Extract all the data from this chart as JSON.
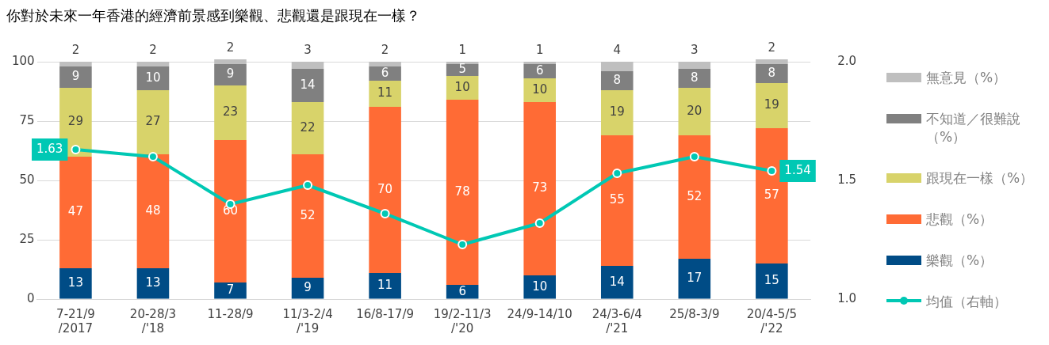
{
  "chart_data": {
    "type": "bar",
    "title": "你對於未來一年香港的經濟前景感到樂觀、悲觀還是跟現在一樣？",
    "categories": [
      "7-21/9\n/2017",
      "20-28/3\n/'18",
      "11-28/9",
      "11/3-2/4\n/'19",
      "16/8-17/9",
      "19/2-11/3\n/'20",
      "24/9-14/10",
      "24/3-6/4\n/'21",
      "25/8-3/9",
      "20/4-5/5\n/'22"
    ],
    "stacked": true,
    "data_labels": true,
    "grid": "y",
    "legend": "right",
    "ylim": [
      0,
      101
    ],
    "yticks": [
      0,
      25,
      50,
      75,
      100
    ],
    "y2lim": [
      1,
      2.01
    ],
    "y2ticks": [
      {
        "value": 1,
        "label": "1.0"
      },
      {
        "value": 1.5,
        "label": "1.5"
      },
      {
        "value": 2,
        "label": "2.0"
      }
    ],
    "series": [
      {
        "name": "樂觀（%）",
        "color": "#004c86",
        "values": [
          13,
          13,
          7,
          9,
          11,
          6,
          10,
          14,
          17,
          15
        ]
      },
      {
        "name": "悲觀（%）",
        "color": "#ff6b35",
        "values": [
          47,
          48,
          60,
          52,
          70,
          78,
          73,
          55,
          52,
          57
        ]
      },
      {
        "name": "跟現在一樣（%）",
        "color": "#d8d36a",
        "values": [
          29,
          27,
          23,
          22,
          11,
          10,
          10,
          19,
          20,
          19
        ]
      },
      {
        "name": "不知道／很難說（%）",
        "color": "#808080",
        "values": [
          9,
          10,
          9,
          14,
          6,
          5,
          6,
          8,
          8,
          8
        ]
      },
      {
        "name": "無意見（%）",
        "color": "#bfbfbf",
        "values": [
          2,
          2,
          2,
          3,
          2,
          1,
          1,
          4,
          3,
          2
        ]
      },
      {
        "name": "均值（右軸）",
        "type": "line",
        "axis": "y2",
        "color": "#00c8b4",
        "marker": "circle",
        "line_style": "solid",
        "values": [
          1.63,
          1.6,
          1.4,
          1.48,
          1.36,
          1.23,
          1.32,
          1.53,
          1.6,
          1.54
        ],
        "value_labels": [
          "1.63",
          null,
          null,
          null,
          null,
          null,
          null,
          null,
          null,
          "1.54"
        ]
      }
    ]
  }
}
